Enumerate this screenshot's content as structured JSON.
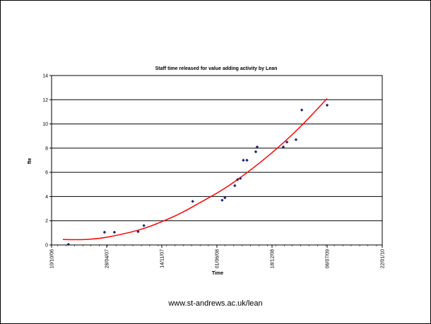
{
  "footer": {
    "url": "www.st-andrews.ac.uk/lean"
  },
  "chart_data": {
    "type": "scatter",
    "title": "Staff time released for value adding activity by Lean",
    "xlabel": "Time",
    "ylabel": "fte",
    "ylim": [
      0,
      14
    ],
    "yticks": [
      0,
      2,
      4,
      6,
      8,
      10,
      12,
      14
    ],
    "xlim": [
      "2006-10-10",
      "2010-01-22"
    ],
    "xticks": [
      "2006-10-10",
      "2007-04-28",
      "2007-11-14",
      "2008-06-01",
      "2008-12-18",
      "2009-07-06",
      "2010-01-22"
    ],
    "xtick_labels": [
      "10/10/06",
      "28/04/07",
      "14/11/07",
      "01/06/08",
      "18/12/08",
      "06/07/09",
      "22/01/10"
    ],
    "grid": "horizontal",
    "legend": "none",
    "colors": {
      "points": "#1f1f7a",
      "trend": "#ff0000"
    },
    "series": [
      {
        "marker": "diamond",
        "points": [
          {
            "x": "2006-12-10",
            "y": 0.05
          },
          {
            "x": "2007-04-20",
            "y": 1.05
          },
          {
            "x": "2007-05-26",
            "y": 1.05
          },
          {
            "x": "2007-08-20",
            "y": 1.1
          },
          {
            "x": "2007-09-10",
            "y": 1.6
          },
          {
            "x": "2008-03-05",
            "y": 3.6
          },
          {
            "x": "2008-06-20",
            "y": 3.7
          },
          {
            "x": "2008-06-30",
            "y": 3.9
          },
          {
            "x": "2008-08-05",
            "y": 4.9
          },
          {
            "x": "2008-08-15",
            "y": 5.4
          },
          {
            "x": "2008-08-25",
            "y": 5.5
          },
          {
            "x": "2008-09-05",
            "y": 7.0
          },
          {
            "x": "2008-09-18",
            "y": 7.0
          },
          {
            "x": "2008-10-20",
            "y": 7.7
          },
          {
            "x": "2008-10-25",
            "y": 8.1
          },
          {
            "x": "2009-01-28",
            "y": 8.1
          },
          {
            "x": "2009-02-10",
            "y": 8.5
          },
          {
            "x": "2009-03-15",
            "y": 8.7
          },
          {
            "x": "2009-04-05",
            "y": 11.15
          },
          {
            "x": "2009-07-06",
            "y": 11.55
          }
        ]
      }
    ],
    "trendline": {
      "type": "polynomial",
      "points": [
        {
          "x": "2006-11-20",
          "y": 0.45
        },
        {
          "x": "2007-02-10",
          "y": 0.45
        },
        {
          "x": "2007-05-01",
          "y": 0.65
        },
        {
          "x": "2007-09-01",
          "y": 1.3
        },
        {
          "x": "2008-01-01",
          "y": 2.4
        },
        {
          "x": "2008-04-01",
          "y": 3.5
        },
        {
          "x": "2008-07-01",
          "y": 4.7
        },
        {
          "x": "2008-10-01",
          "y": 6.2
        },
        {
          "x": "2009-01-01",
          "y": 7.9
        },
        {
          "x": "2009-04-01",
          "y": 9.8
        },
        {
          "x": "2009-07-06",
          "y": 12.1
        }
      ]
    }
  }
}
